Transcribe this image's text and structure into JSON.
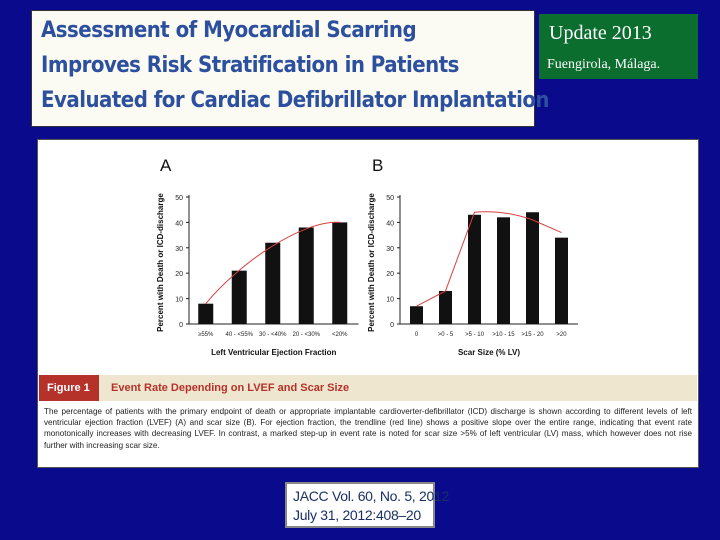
{
  "title": {
    "lines": [
      "Assessment of Myocardial Scarring",
      "Improves Risk Stratification in Patients",
      "Evaluated for Cardiac Defibrillator Implantation"
    ]
  },
  "update_box": {
    "title": "Update  2013",
    "subtitle": "Fuengirola, Málaga."
  },
  "figure": {
    "label": "Figure 1",
    "title": "Event Rate Depending on LVEF and Scar Size",
    "caption": "The percentage of patients with the primary endpoint of death or appropriate implantable cardioverter-defibrillator (ICD) discharge is shown according to different levels of left ventricular ejection fraction (LVEF) (A) and scar size (B). For ejection fraction, the trendline (red line) shows a positive slope over the entire range, indicating that event rate monotonically increases with decreasing LVEF. In contrast, a marked step-up in event rate is noted for scar size >5% of left ventricular (LV) mass, which however does not rise further with increasing scar size."
  },
  "citation": {
    "line1": "JACC Vol. 60, No. 5, 2012",
    "line2": "July 31, 2012:408–20"
  },
  "colors": {
    "background": "#0a0a8c",
    "title_text": "#2c4f9e",
    "update_box": "#0b6e2e",
    "bar": "#111111",
    "trendline": "#d94040",
    "figure_label": "#b5322a",
    "figure_header": "#efe6cf"
  },
  "chart_data": [
    {
      "type": "bar",
      "panel_label": "A",
      "categories": [
        "≥55%",
        "40 - <55%",
        "30 - <40%",
        "20 - <30%",
        "<20%"
      ],
      "values": [
        8,
        21,
        32,
        38,
        40
      ],
      "xlabel": "Left Ventricular Ejection Fraction",
      "ylabel": "Percent with Death or ICD-discharge",
      "ylim": [
        0,
        50
      ],
      "yticks": [
        0,
        10,
        20,
        30,
        40,
        50
      ],
      "trendline": {
        "color": "red",
        "shape": "monotonic increasing"
      }
    },
    {
      "type": "bar",
      "panel_label": "B",
      "categories": [
        "0",
        ">0 - 5",
        ">5 - 10",
        ">10 - 15",
        ">15 - 20",
        ">20"
      ],
      "values": [
        7,
        13,
        43,
        42,
        44,
        34
      ],
      "xlabel": "Scar Size (% LV)",
      "ylabel": "Percent with Death or ICD-discharge",
      "ylim": [
        0,
        50
      ],
      "yticks": [
        0,
        10,
        20,
        30,
        40,
        50
      ],
      "trendline": {
        "color": "red",
        "shape": "step-up then plateau"
      }
    }
  ]
}
